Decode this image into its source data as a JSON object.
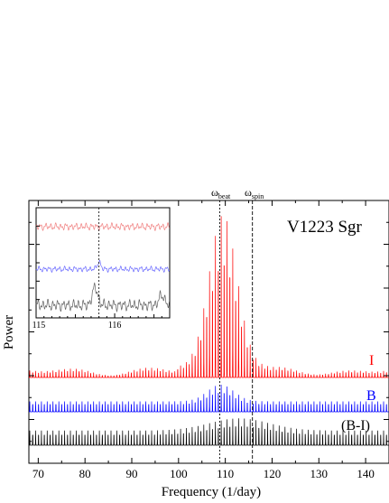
{
  "chart_data": {
    "type": "line",
    "title": "V1223 Sgr",
    "xlabel": "Frequency (1/day)",
    "ylabel": "Power",
    "xlim": [
      68,
      145
    ],
    "x_ticks": [
      70,
      80,
      90,
      100,
      110,
      120,
      130,
      140
    ],
    "grid": false,
    "markers": [
      {
        "symbol": "ω",
        "sub": "beat",
        "x": 108.8,
        "style": "dotted"
      },
      {
        "symbol": "ω",
        "sub": "spin",
        "x": 115.8,
        "style": "dashed"
      }
    ],
    "series": [
      {
        "name": "I",
        "color": "#ff0000",
        "envelope_center": 109.5,
        "peak": 0.92,
        "base": 0.06,
        "comb_spacing": 0.62
      },
      {
        "name": "B",
        "color": "#0000ff",
        "envelope_center": 109.0,
        "peak": 0.52,
        "base": 0.2,
        "comb_spacing": 0.62
      },
      {
        "name": "(B-I)",
        "color": "#000000",
        "envelope_center": 113.0,
        "peak": 0.55,
        "base": 0.3,
        "comb_spacing": 0.62
      }
    ],
    "inset": {
      "xlim": [
        115,
        116.7
      ],
      "x_ticks": [
        115,
        116
      ],
      "marker_x": 115.8,
      "series_colors": [
        "#f08080",
        "#6a6aff",
        "#606060"
      ]
    }
  }
}
